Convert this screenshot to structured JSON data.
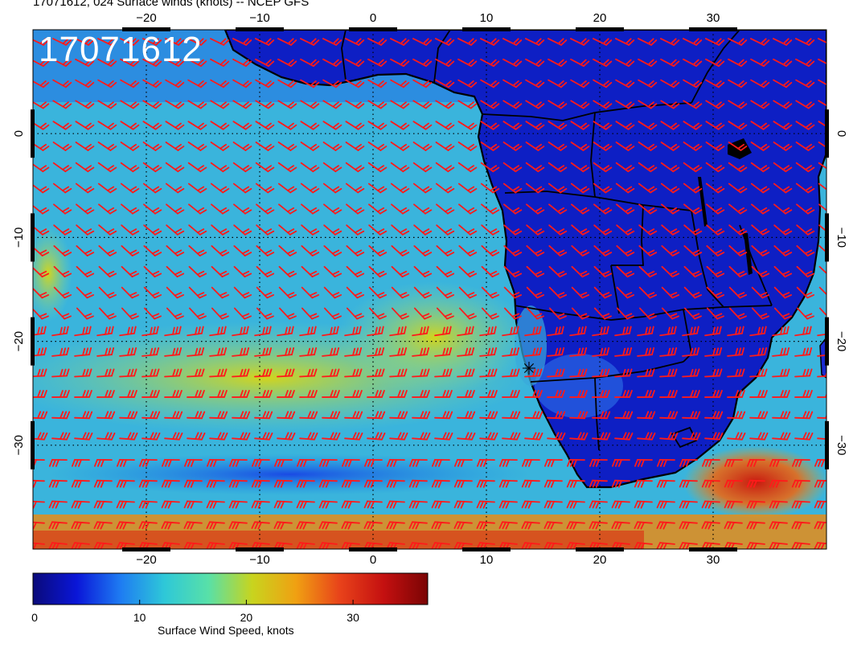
{
  "title": "17071612, 024 Surface winds (knots) -- NCEP GFS",
  "stamp": "17071612",
  "map": {
    "lon_range": [
      -30,
      40
    ],
    "lat_range": [
      -40,
      10
    ],
    "top_lon_ticks": [
      "−20",
      "−10",
      "0",
      "10",
      "20",
      "30"
    ],
    "bottom_lon_ticks": [
      "−20",
      "−10",
      "0",
      "10",
      "20",
      "30"
    ],
    "left_lat_ticks": [
      "0",
      "−10",
      "−20",
      "−30"
    ],
    "right_lat_ticks": [
      "0",
      "−10",
      "−20",
      "−30"
    ],
    "grid_lines": "dotted",
    "wind_barb_color": "#ff1a1a"
  },
  "colorbar": {
    "label": "Surface Wind Speed, knots",
    "ticks": [
      "0",
      "10",
      "20",
      "30"
    ],
    "tick_values": [
      0,
      10,
      20,
      30
    ],
    "range": [
      0,
      37
    ],
    "colors": [
      "#0a0a7a",
      "#0a16d8",
      "#1e7cf2",
      "#2ec8d8",
      "#58e0a8",
      "#c8d41e",
      "#f0a012",
      "#e8421a",
      "#c41010",
      "#7a0404"
    ]
  }
}
